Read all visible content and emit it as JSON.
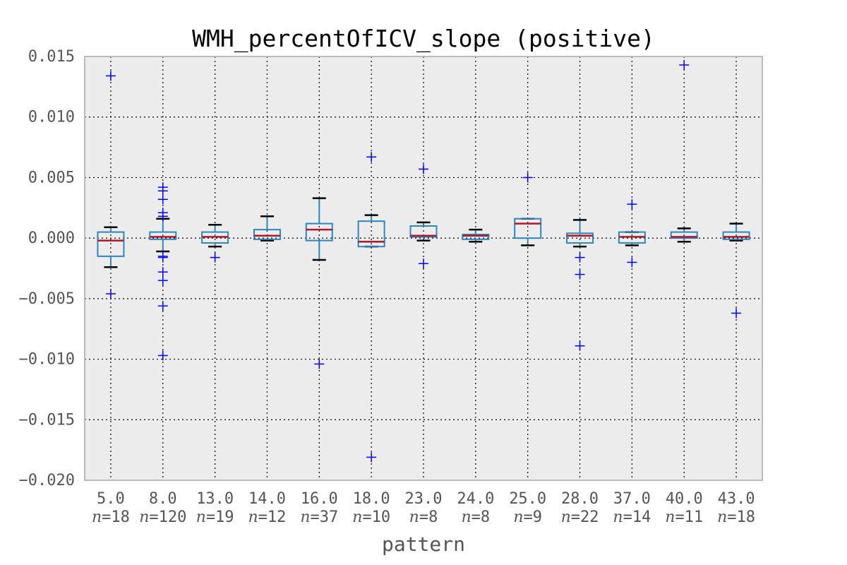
{
  "chart_data": {
    "type": "box",
    "title": "WMH_percentOfICV_slope (positive)",
    "xlabel": "pattern",
    "ylabel": "",
    "ylim": [
      -0.02,
      0.015
    ],
    "yticks": [
      "0.015",
      "0.010",
      "0.005",
      "0.000",
      "−0.005",
      "−0.010",
      "−0.015",
      "−0.020"
    ],
    "ytick_values": [
      0.015,
      0.01,
      0.005,
      0.0,
      -0.005,
      -0.01,
      -0.015,
      -0.02
    ],
    "grid": true,
    "colors": {
      "box": "#2e86c1",
      "median": "#b2182b",
      "cap": "#000000",
      "flier": "#0000ff",
      "background": "#ececec",
      "grid": "#000000",
      "frame": "#bbbbbb"
    },
    "categories": [
      "5.0",
      "8.0",
      "13.0",
      "14.0",
      "16.0",
      "18.0",
      "23.0",
      "24.0",
      "25.0",
      "28.0",
      "37.0",
      "40.0",
      "43.0"
    ],
    "counts": [
      "n=18",
      "n=120",
      "n=19",
      "n=12",
      "n=37",
      "n=10",
      "n=8",
      "n=8",
      "n=9",
      "n=22",
      "n=14",
      "n=11",
      "n=18"
    ],
    "boxes": [
      {
        "whislo": -0.0024,
        "q1": -0.0015,
        "med": -0.0002,
        "q3": 0.0005,
        "whishi": 0.0009,
        "fliers": [
          0.0134,
          -0.0046
        ]
      },
      {
        "whislo": -0.0011,
        "q1": -0.0001,
        "med": 0.0001,
        "q3": 0.0005,
        "whishi": 0.0016,
        "fliers": [
          0.0042,
          0.0039,
          0.0032,
          0.0021,
          0.0018,
          -0.0015,
          -0.0016,
          -0.0028,
          -0.0035,
          -0.0056,
          -0.0097
        ]
      },
      {
        "whislo": -0.0007,
        "q1": -0.0004,
        "med": 0.0001,
        "q3": 0.0005,
        "whishi": 0.0011,
        "fliers": [
          -0.0016
        ]
      },
      {
        "whislo": -0.0002,
        "q1": -0.0001,
        "med": 0.0002,
        "q3": 0.0007,
        "whishi": 0.0018,
        "fliers": []
      },
      {
        "whislo": -0.0018,
        "q1": -0.0002,
        "med": 0.0007,
        "q3": 0.0012,
        "whishi": 0.0033,
        "fliers": [
          -0.0104
        ]
      },
      {
        "whislo": -0.0007,
        "q1": -0.0007,
        "med": -0.0003,
        "q3": 0.0014,
        "whishi": 0.0019,
        "fliers": [
          0.0067,
          -0.0181
        ]
      },
      {
        "whislo": -0.0002,
        "q1": 0.0001,
        "med": 0.0002,
        "q3": 0.001,
        "whishi": 0.0013,
        "fliers": [
          0.0057,
          -0.0021
        ]
      },
      {
        "whislo": -0.0003,
        "q1": -0.0001,
        "med": 0.0002,
        "q3": 0.0003,
        "whishi": 0.0007,
        "fliers": []
      },
      {
        "whislo": -0.0006,
        "q1": 0.0,
        "med": 0.0012,
        "q3": 0.0016,
        "whishi": 0.0016,
        "fliers": [
          0.005
        ]
      },
      {
        "whislo": -0.0007,
        "q1": -0.0004,
        "med": 0.0002,
        "q3": 0.0004,
        "whishi": 0.0015,
        "fliers": [
          -0.0016,
          -0.003,
          -0.0089
        ]
      },
      {
        "whislo": -0.0006,
        "q1": -0.0004,
        "med": 0.0001,
        "q3": 0.0005,
        "whishi": 0.0005,
        "fliers": [
          0.0028,
          -0.002
        ]
      },
      {
        "whislo": -0.0003,
        "q1": 0.0,
        "med": 0.0001,
        "q3": 0.0005,
        "whishi": 0.0008,
        "fliers": [
          0.0143
        ]
      },
      {
        "whislo": -0.0002,
        "q1": -0.0001,
        "med": 0.0001,
        "q3": 0.0005,
        "whishi": 0.0012,
        "fliers": [
          -0.0062
        ]
      }
    ]
  }
}
